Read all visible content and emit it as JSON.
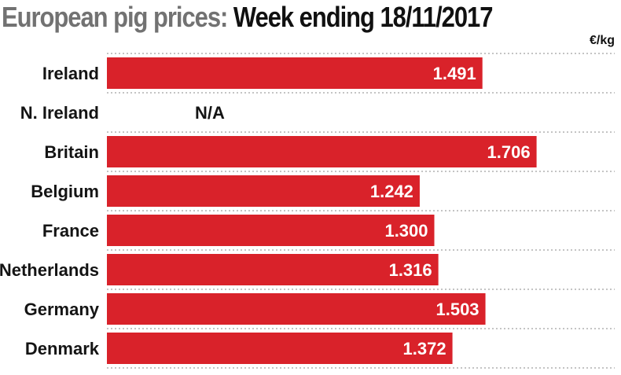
{
  "title": {
    "part1": "European pig prices:",
    "part2": "Week ending 18/11/2017"
  },
  "unit_label": "€/kg",
  "chart_data": {
    "type": "bar",
    "orientation": "horizontal",
    "categories": [
      "Ireland",
      "N. Ireland",
      "Britain",
      "Belgium",
      "France",
      "Netherlands",
      "Germany",
      "Denmark"
    ],
    "values": [
      1.491,
      null,
      1.706,
      1.242,
      1.3,
      1.316,
      1.503,
      1.372
    ],
    "value_labels": [
      "1.491",
      "N/A",
      "1.706",
      "1.242",
      "1.300",
      "1.316",
      "1.503",
      "1.372"
    ],
    "unit": "€/kg",
    "bar_color": "#d9222a",
    "xlim": [
      0,
      1.8
    ],
    "grid": true
  }
}
